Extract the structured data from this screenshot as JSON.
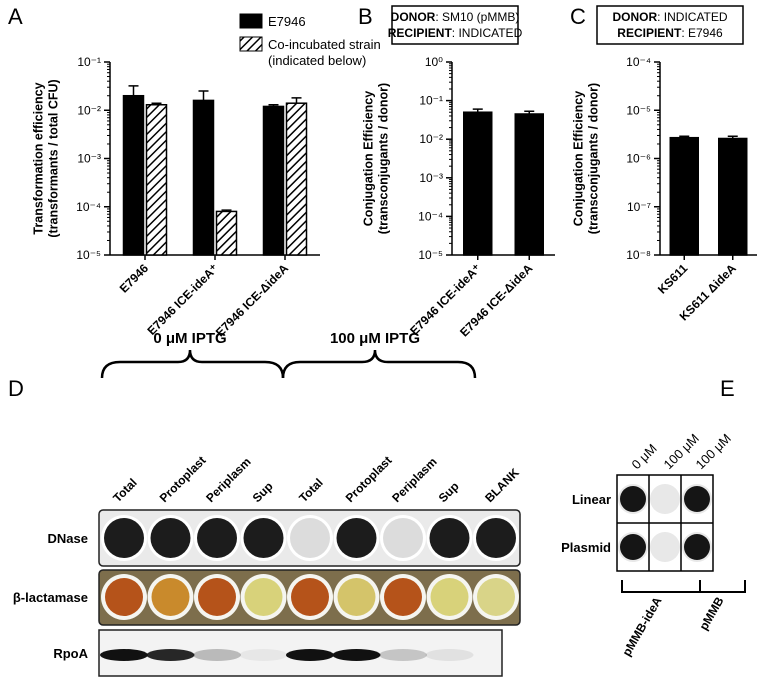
{
  "chart_data": [
    {
      "panel": "A",
      "type": "bar",
      "log_y": true,
      "ylabel": "Transformation efficiency\n(transformants / total CFU)",
      "ylim": [
        1e-05,
        0.1
      ],
      "yticks": [
        {
          "value": 1e-05,
          "label": "10⁻⁵"
        },
        {
          "value": 0.0001,
          "label": "10⁻⁴"
        },
        {
          "value": 0.001,
          "label": "10⁻³"
        },
        {
          "value": 0.01,
          "label": "10⁻²"
        },
        {
          "value": 0.1,
          "label": "10⁻¹"
        }
      ],
      "categories": [
        "E7946",
        "E7946 ICE-ideA⁺",
        "E7946 ICE-ΔideA"
      ],
      "legend": "top-right",
      "series": [
        {
          "name": "E7946",
          "color": "#000000",
          "values": [
            0.02,
            0.016,
            0.012
          ],
          "errors": [
            0.012,
            0.009,
            0.001
          ]
        },
        {
          "name": "Co-incubated strain\n(indicated below)",
          "color": "#000000",
          "hatch": true,
          "values": [
            0.013,
            8e-05,
            0.014
          ],
          "errors": [
            0.001,
            5e-06,
            0.004
          ]
        }
      ]
    },
    {
      "panel": "B",
      "type": "bar",
      "log_y": true,
      "box": [
        {
          "label": "DONOR",
          "text": ": SM10 (pMMB)"
        },
        {
          "label": "RECIPIENT",
          "text": ": INDICATED"
        }
      ],
      "ylabel": "Conjugation Efficiency\n(transconjugants / donor)",
      "ylim": [
        1e-05,
        1
      ],
      "yticks": [
        {
          "value": 1e-05,
          "label": "10⁻⁵"
        },
        {
          "value": 0.0001,
          "label": "10⁻⁴"
        },
        {
          "value": 0.001,
          "label": "10⁻³"
        },
        {
          "value": 0.01,
          "label": "10⁻²"
        },
        {
          "value": 0.1,
          "label": "10⁻¹"
        },
        {
          "value": 1,
          "label": "10⁰"
        }
      ],
      "categories": [
        "E7946 ICE-ideA⁺",
        "E7946 ICE-ΔideA"
      ],
      "series": [
        {
          "color": "#000000",
          "values": [
            0.05,
            0.045
          ],
          "errors": [
            0.01,
            0.008
          ]
        }
      ]
    },
    {
      "panel": "C",
      "type": "bar",
      "log_y": true,
      "box": [
        {
          "label": "DONOR",
          "text": ": INDICATED"
        },
        {
          "label": "RECIPIENT",
          "text": ": E7946"
        }
      ],
      "ylabel": "Conjugation Efficiency\n(transconjugants / donor)",
      "ylim": [
        1e-08,
        0.0001
      ],
      "yticks": [
        {
          "value": 1e-08,
          "label": "10⁻⁸"
        },
        {
          "value": 1e-07,
          "label": "10⁻⁷"
        },
        {
          "value": 1e-06,
          "label": "10⁻⁶"
        },
        {
          "value": 1e-05,
          "label": "10⁻⁵"
        },
        {
          "value": 0.0001,
          "label": "10⁻⁴"
        }
      ],
      "categories": [
        "KS611",
        "KS611 ΔideA"
      ],
      "series": [
        {
          "color": "#000000",
          "values": [
            2.7e-06,
            2.6e-06
          ],
          "errors": [
            2e-07,
            3e-07
          ]
        }
      ]
    }
  ],
  "panel_d": {
    "panel": "D",
    "conditions": [
      "0 μM IPTG",
      "100 μM IPTG"
    ],
    "lanes": [
      "Total",
      "Protoplast",
      "Periplasm",
      "Sup",
      "Total",
      "Protoplast",
      "Periplasm",
      "Sup",
      "BLANK"
    ],
    "rows": [
      "DNase",
      "β-lactamase",
      "RpoA"
    ]
  },
  "panel_e": {
    "panel": "E",
    "columns": [
      "0 μM",
      "100 μM",
      "100 μM"
    ],
    "rows": [
      "Linear",
      "Plasmid"
    ],
    "groups": [
      "pMMB-ideA",
      "pMMB"
    ]
  }
}
